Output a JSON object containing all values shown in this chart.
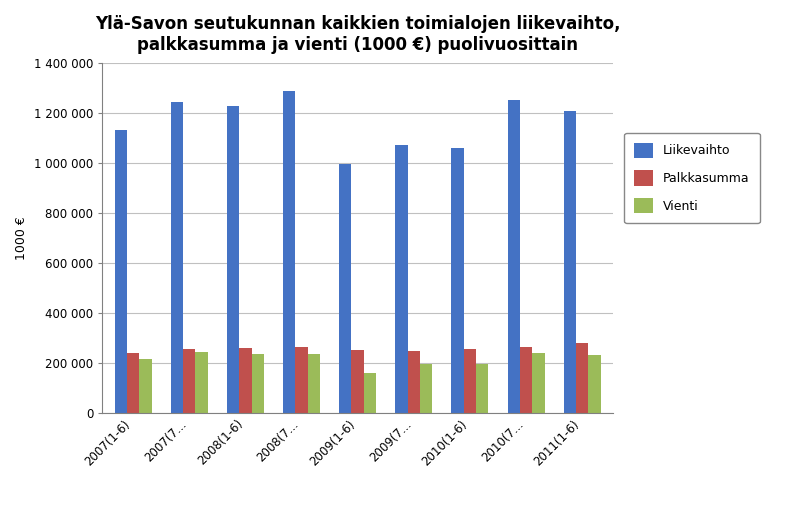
{
  "title": "Ylä-Savon seutukunnan kaikkien toimialojen liikevaihto,\npalkkasumma ja vienti (1000 €) puolivuosittain",
  "ylabel": "1000 €",
  "categories": [
    "2007(1-6)",
    "2007(7...",
    "2008(1-6)",
    "2008(7...",
    "2009(1-6)",
    "2009(7...",
    "2010(1-6)",
    "2010(7...",
    "2011(1-6)"
  ],
  "series": {
    "Liikevaihto": [
      1135000,
      1245000,
      1230000,
      1290000,
      995000,
      1075000,
      1060000,
      1255000,
      1210000
    ],
    "Palkkasumma": [
      240000,
      255000,
      260000,
      265000,
      250000,
      248000,
      255000,
      265000,
      278000
    ],
    "Vienti": [
      215000,
      245000,
      235000,
      235000,
      160000,
      195000,
      195000,
      240000,
      230000
    ]
  },
  "colors": {
    "Liikevaihto": "#4472C4",
    "Palkkasumma": "#C0504D",
    "Vienti": "#9BBB59"
  },
  "ylim": [
    0,
    1400000
  ],
  "yticks": [
    0,
    200000,
    400000,
    600000,
    800000,
    1000000,
    1200000,
    1400000
  ],
  "ytick_labels": [
    "0",
    "200 000",
    "400 000",
    "600 000",
    "800 000",
    "1 000 000",
    "1 200 000",
    "1 400 000"
  ],
  "background_color": "#FFFFFF",
  "plot_bg_color": "#FFFFFF",
  "grid_color": "#C0C0C0",
  "title_fontsize": 12,
  "axis_label_fontsize": 9,
  "tick_fontsize": 8.5,
  "legend_fontsize": 9,
  "bar_width": 0.22,
  "figsize": [
    7.86,
    5.29
  ],
  "dpi": 100
}
